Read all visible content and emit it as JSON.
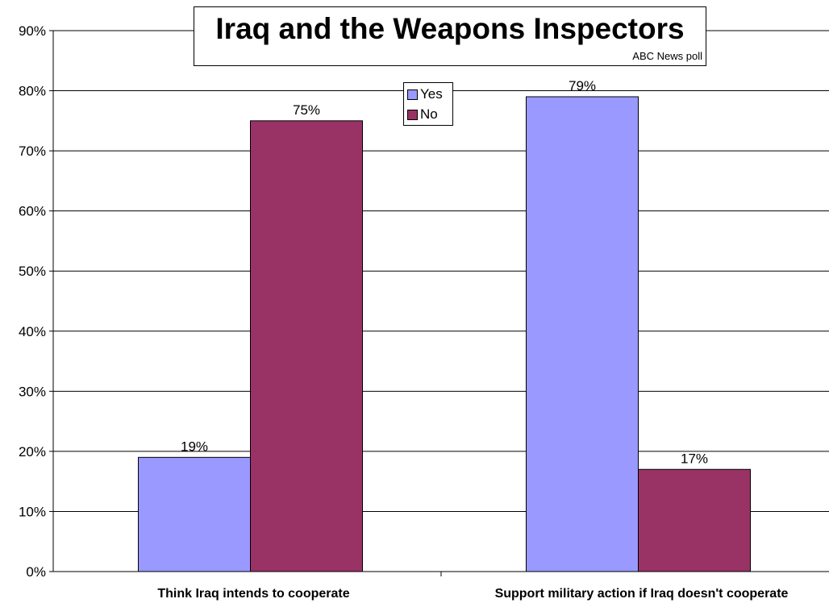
{
  "chart_data": {
    "type": "bar",
    "title": "Iraq and the Weapons Inspectors",
    "subtitle": "ABC News poll",
    "categories": [
      "Think Iraq intends to cooperate",
      "Support military action if Iraq doesn't cooperate"
    ],
    "series": [
      {
        "name": "Yes",
        "color": "#9999ff",
        "values": [
          19,
          79
        ],
        "labels": [
          "19%",
          "79%"
        ]
      },
      {
        "name": "No",
        "color": "#993366",
        "values": [
          75,
          17
        ],
        "labels": [
          "75%",
          "17%"
        ]
      }
    ],
    "ylim": [
      0,
      90
    ],
    "yticks": [
      0,
      10,
      20,
      30,
      40,
      50,
      60,
      70,
      80,
      90
    ],
    "ytick_labels": [
      "0%",
      "10%",
      "20%",
      "30%",
      "40%",
      "50%",
      "60%",
      "70%",
      "80%",
      "90%"
    ],
    "grid": true,
    "legend_position": "top-center"
  }
}
